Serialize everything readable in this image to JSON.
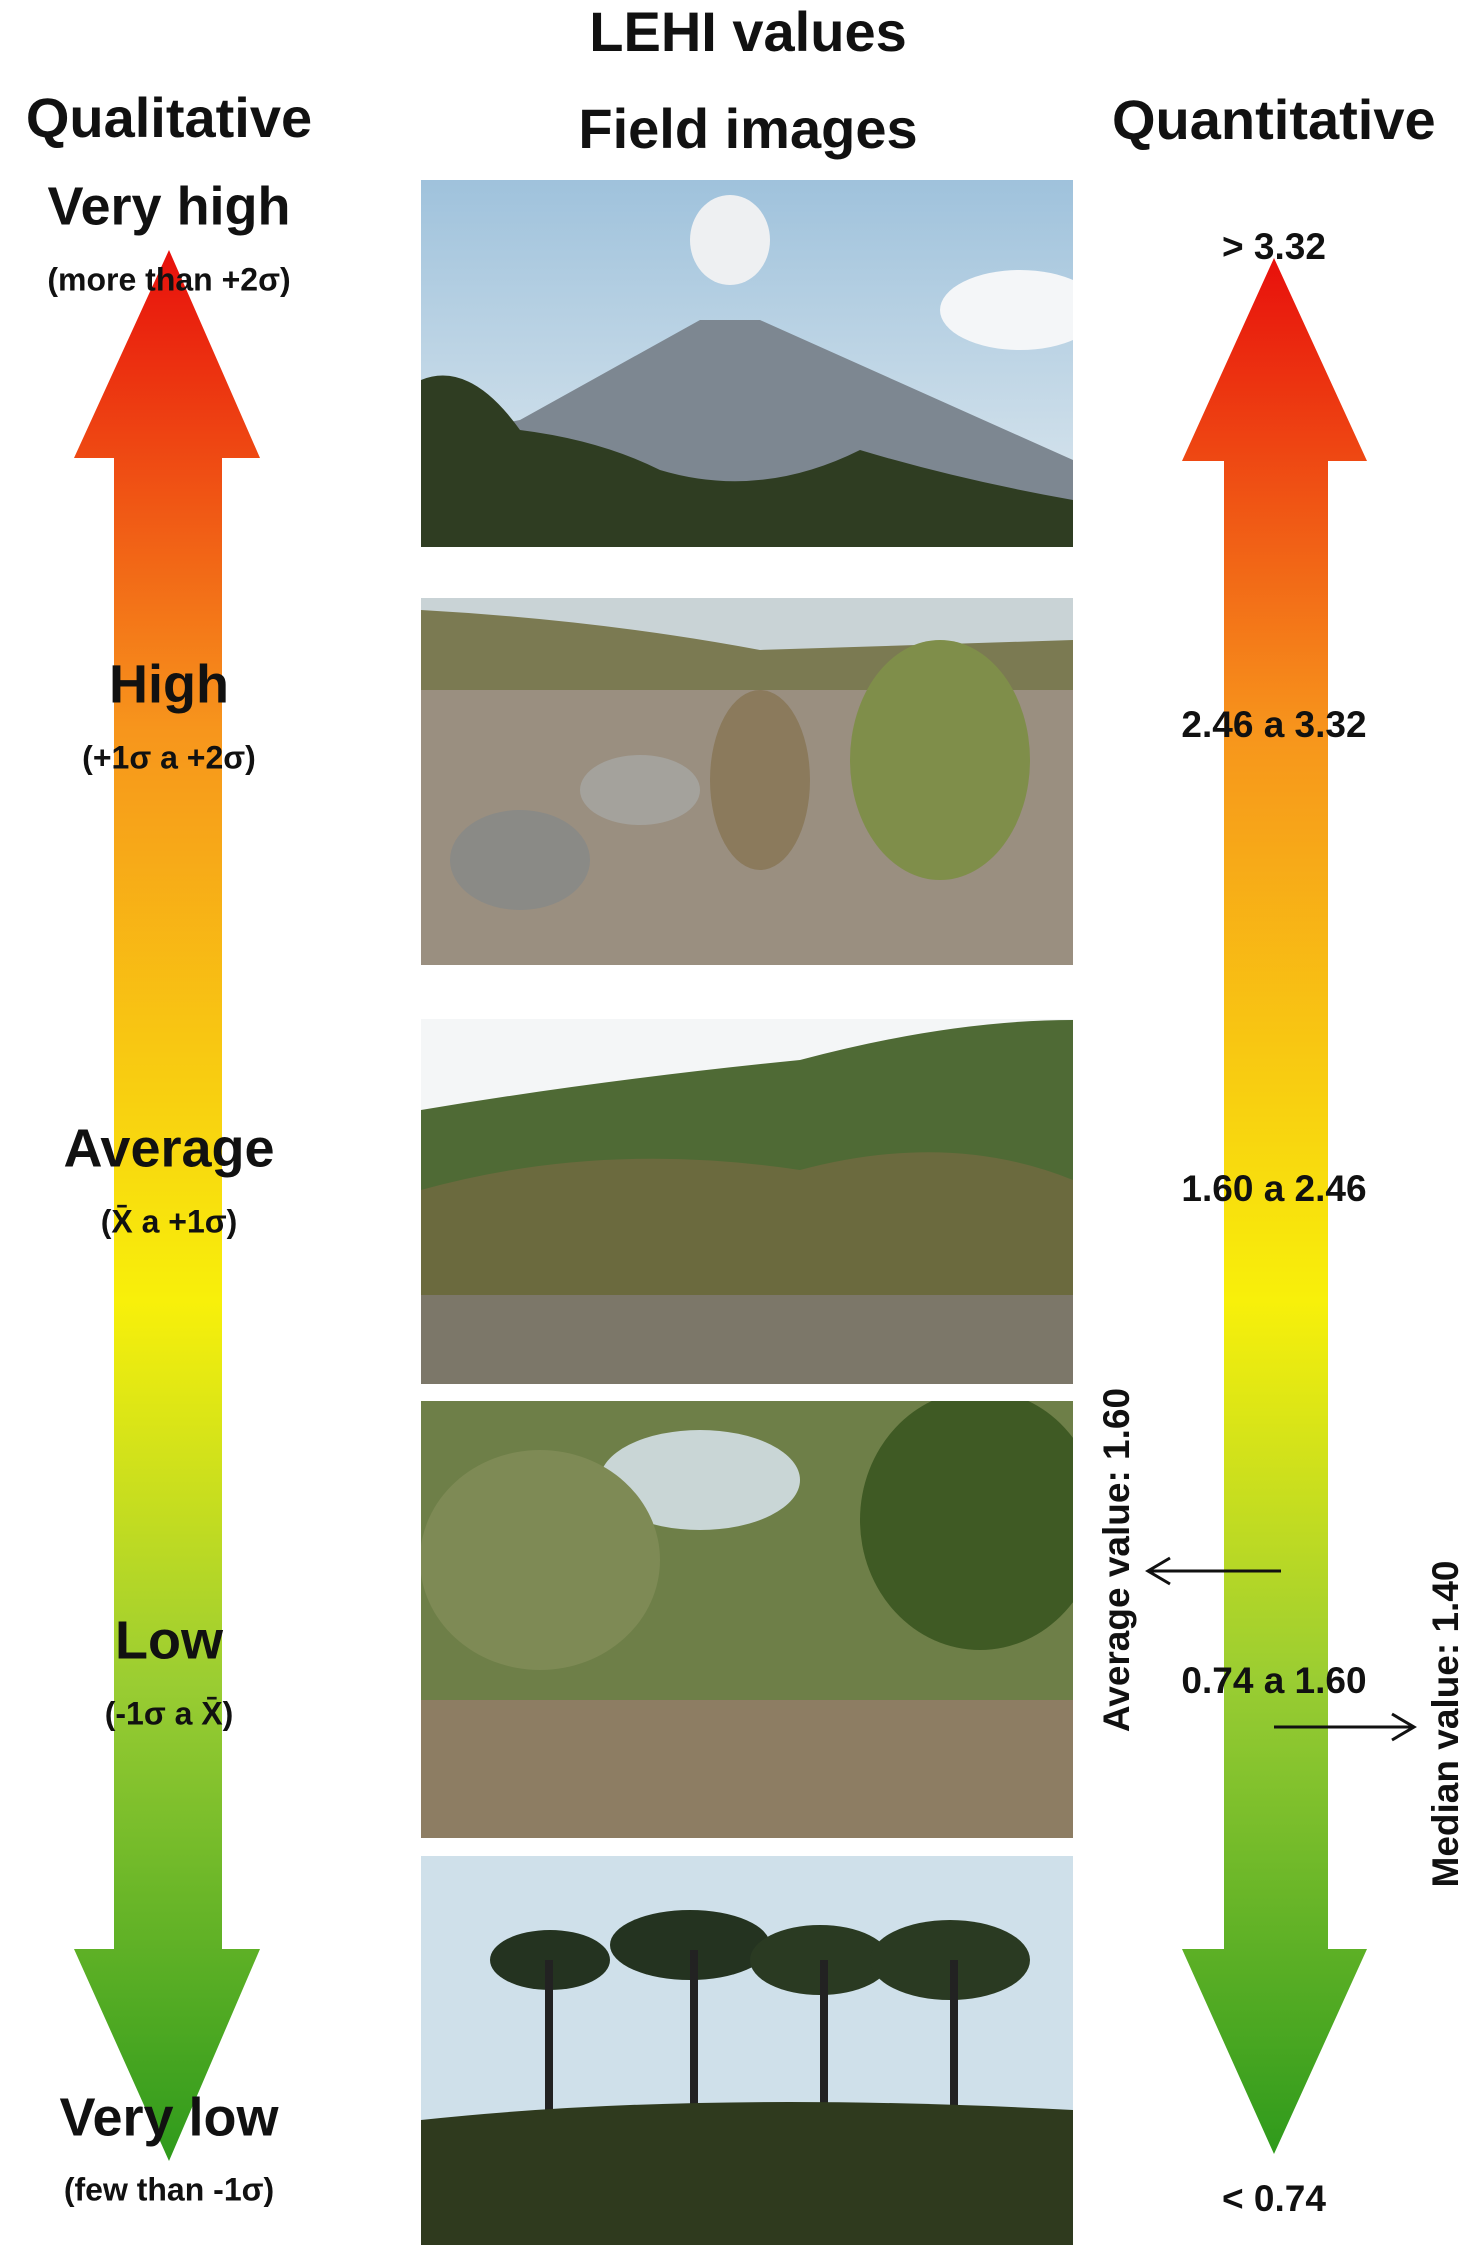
{
  "header": {
    "title": "LEHI values",
    "subtitle": "Field images"
  },
  "left_header": "Qualitative",
  "right_header": "Quantitative",
  "qualitative": [
    {
      "label": "Very high",
      "range": "(more than +2σ)"
    },
    {
      "label": "High",
      "range": "(+1σ a +2σ)"
    },
    {
      "label": "Average",
      "range": "(X̄ a +1σ)"
    },
    {
      "label": "Low",
      "range": "(-1σ a X̄)"
    },
    {
      "label": "Very low",
      "range": "(few than -1σ)"
    }
  ],
  "quantitative": [
    "> 3.32",
    "2.46 a 3.32",
    "1.60 a 2.46",
    "0.74 a 1.60",
    "< 0.74"
  ],
  "annotations": {
    "average": "Average value: 1.60",
    "median": "Median value: 1.40"
  }
}
